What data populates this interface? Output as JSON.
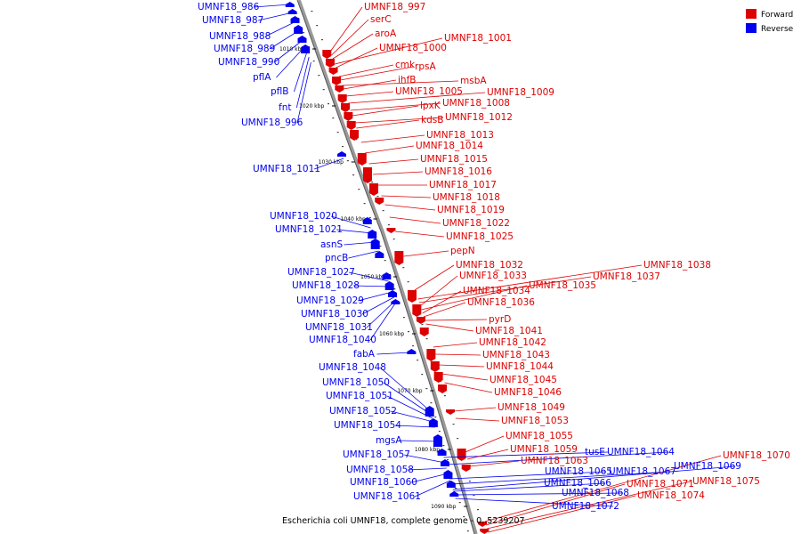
{
  "caption": "Escherichia coli UMNF18, complete genome - 0..5239207",
  "legend": {
    "forward": "Forward",
    "reverse": "Reverse",
    "forward_color": "#dd0000",
    "reverse_color": "#0000ee"
  },
  "kbp_marks": [
    "1010 kbp",
    "1020 kbp",
    "1030 kbp",
    "1040 kbp",
    "1050 kbp",
    "1060 kbp",
    "1070 kbp",
    "1080 kbp",
    "1090 kbp"
  ],
  "reverse_labels": [
    "UMNF18_986",
    "UMNF18_987",
    "UMNF18_988",
    "UMNF18_989",
    "UMNF18_990",
    "pflA",
    "pflB",
    "fnt",
    "UMNF18_996",
    "UMNF18_1011",
    "UMNF18_1020",
    "UMNF18_1021",
    "asnS",
    "pncB",
    "UMNF18_1027",
    "UMNF18_1028",
    "UMNF18_1029",
    "UMNF18_1030",
    "UMNF18_1031",
    "UMNF18_1040",
    "fabA",
    "UMNF18_1048",
    "UMNF18_1050",
    "UMNF18_1051",
    "UMNF18_1052",
    "UMNF18_1054",
    "mgsA",
    "UMNF18_1057",
    "UMNF18_1058",
    "UMNF18_1060",
    "UMNF18_1061",
    "tusE",
    "UMNF18_1064",
    "UMNF18_1065",
    "UMNF18_1067",
    "UMNF18_1069",
    "UMNF18_1066",
    "UMNF18_1068",
    "UMNF18_1072"
  ],
  "forward_labels": [
    "UMNF18_997",
    "serC",
    "aroA",
    "UMNF18_1001",
    "UMNF18_1000",
    "cmk",
    "rpsA",
    "msbA",
    "ihfB",
    "UMNF18_1005",
    "UMNF18_1009",
    "UMNF18_1008",
    "lpxK",
    "UMNF18_1012",
    "kdsB",
    "UMNF18_1013",
    "UMNF18_1014",
    "UMNF18_1015",
    "UMNF18_1016",
    "UMNF18_1017",
    "UMNF18_1018",
    "UMNF18_1019",
    "UMNF18_1022",
    "UMNF18_1025",
    "pepN",
    "UMNF18_1038",
    "UMNF18_1032",
    "UMNF18_1037",
    "UMNF18_1033",
    "UMNF18_1035",
    "UMNF18_1034",
    "UMNF18_1036",
    "pyrD",
    "UMNF18_1041",
    "UMNF18_1042",
    "UMNF18_1043",
    "UMNF18_1044",
    "UMNF18_1045",
    "UMNF18_1046",
    "UMNF18_1049",
    "UMNF18_1053",
    "UMNF18_1055",
    "UMNF18_1059",
    "UMNF18_1063",
    "UMNF18_1070",
    "UMNF18_1071",
    "UMNF18_1075",
    "UMNF18_1074"
  ]
}
